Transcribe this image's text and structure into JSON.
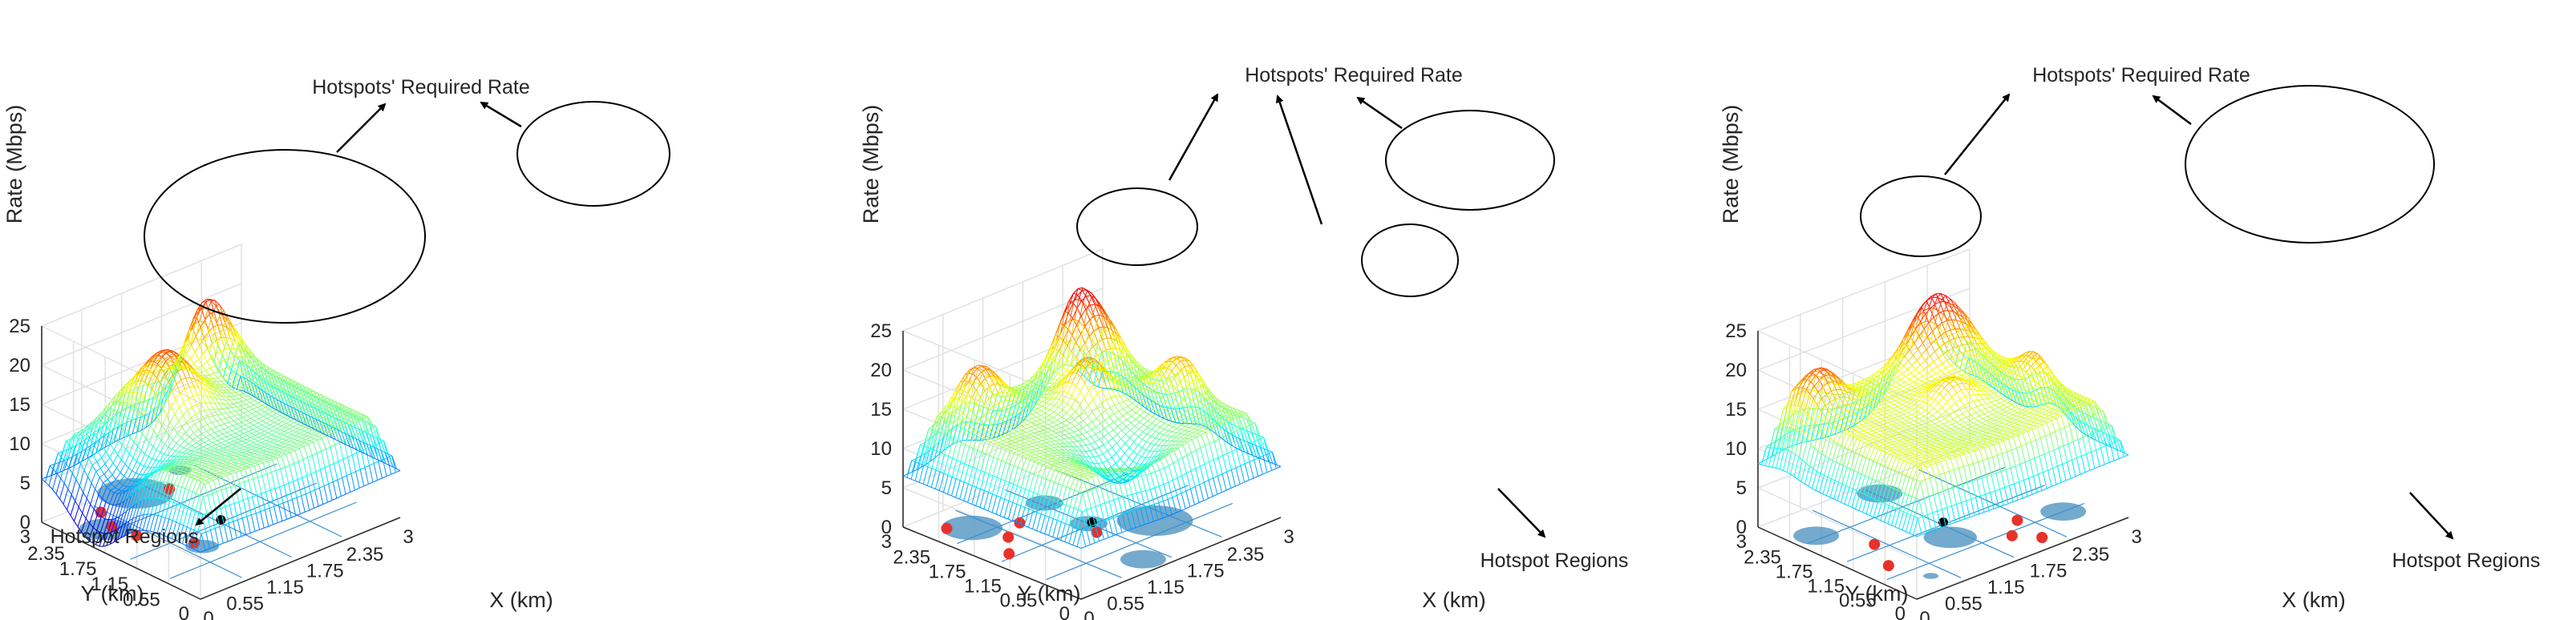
{
  "chart_data": [
    {
      "type": "surface",
      "panel": "left",
      "zlabel": "Rate (Mbps)",
      "xlabel": "X (km)",
      "ylabel": "Y (km)",
      "zlim": [
        0,
        25
      ],
      "zticks": [
        "0",
        "5",
        "10",
        "15",
        "20",
        "25"
      ],
      "xticks": [
        "0",
        "0.55",
        "1.15",
        "1.75",
        "2.35",
        "3"
      ],
      "yticks": [
        "0",
        "0.55",
        "1.15",
        "1.75",
        "2.35",
        "3"
      ],
      "annotations": {
        "required_rate": "Hotspots' Required Rate",
        "regions": "Hotspot Regions"
      },
      "base_level": 13,
      "hotspots": [
        {
          "x": 1.2,
          "y": 2.2,
          "peak": 21,
          "spread": 0.35
        },
        {
          "x": 2.3,
          "y": 2.9,
          "peak": 23,
          "spread": 0.28
        },
        {
          "x": 0.3,
          "y": 2.0,
          "peak": 6,
          "spread": 0.45
        }
      ],
      "base_pixels": [
        {
          "x": 0.4,
          "y": 2.3,
          "r": 0.35
        },
        {
          "x": 1.25,
          "y": 2.8,
          "r": 0.5
        },
        {
          "x": 0.9,
          "y": 1.1,
          "r": 0.22
        },
        {
          "x": 2.0,
          "y": 2.9,
          "r": 0.15
        }
      ],
      "base_stations": [
        {
          "x": 0.55,
          "y": 1.9
        },
        {
          "x": 0.9,
          "y": 1.25
        },
        {
          "x": 1.6,
          "y": 2.6
        },
        {
          "x": 0.65,
          "y": 2.7
        },
        {
          "x": 0.5,
          "y": 2.3
        }
      ]
    },
    {
      "type": "surface",
      "panel": "middle",
      "zlabel": "Rate (Mbps)",
      "xlabel": "X (km)",
      "ylabel": "Y (km)",
      "zlim": [
        0,
        25
      ],
      "zticks": [
        "0",
        "5",
        "10",
        "15",
        "20",
        "25"
      ],
      "xticks": [
        "0",
        "0.55",
        "1.15",
        "1.75",
        "2.35",
        "3"
      ],
      "yticks": [
        "0",
        "0.55",
        "1.15",
        "1.75",
        "2.35",
        "3"
      ],
      "annotations": {
        "required_rate": "Hotspots' Required Rate",
        "regions": "Hotspot Regions"
      },
      "base_level": 13.5,
      "hotspots": [
        {
          "x": 0.8,
          "y": 2.6,
          "peak": 19,
          "spread": 0.25
        },
        {
          "x": 2.4,
          "y": 2.7,
          "peak": 23,
          "spread": 0.3
        },
        {
          "x": 1.8,
          "y": 1.9,
          "peak": 19,
          "spread": 0.22
        },
        {
          "x": 2.6,
          "y": 1.3,
          "peak": 18,
          "spread": 0.25
        },
        {
          "x": 1.3,
          "y": 0.8,
          "peak": 9,
          "spread": 0.3
        }
      ],
      "base_pixels": [
        {
          "x": 0.5,
          "y": 2.4,
          "r": 0.4
        },
        {
          "x": 1.5,
          "y": 2.3,
          "r": 0.25
        },
        {
          "x": 1.45,
          "y": 1.5,
          "r": 0.25
        },
        {
          "x": 2.0,
          "y": 1.0,
          "r": 0.5
        },
        {
          "x": 1.2,
          "y": 0.3,
          "r": 0.3
        }
      ],
      "base_stations": [
        {
          "x": 0.3,
          "y": 2.6
        },
        {
          "x": 0.6,
          "y": 1.9
        },
        {
          "x": 0.95,
          "y": 2.1
        },
        {
          "x": 1.35,
          "y": 1.25
        },
        {
          "x": 0.3,
          "y": 1.55
        }
      ]
    },
    {
      "type": "surface",
      "panel": "right",
      "zlabel": "Rate (Mbps)",
      "xlabel": "X (km)",
      "ylabel": "Y (km)",
      "zlim": [
        0,
        25
      ],
      "zticks": [
        "0",
        "5",
        "10",
        "15",
        "20",
        "25"
      ],
      "xticks": [
        "0",
        "0.55",
        "1.15",
        "1.75",
        "2.35",
        "3"
      ],
      "yticks": [
        "0",
        "0.55",
        "1.15",
        "1.75",
        "2.35",
        "3"
      ],
      "annotations": {
        "required_rate": "Hotspots' Required Rate",
        "regions": "Hotspot Regions"
      },
      "base_level": 15,
      "hotspots": [
        {
          "x": 0.5,
          "y": 2.5,
          "peak": 20,
          "spread": 0.25
        },
        {
          "x": 2.3,
          "y": 2.9,
          "peak": 23.5,
          "spread": 0.35
        },
        {
          "x": 2.8,
          "y": 1.4,
          "peak": 18,
          "spread": 0.25
        },
        {
          "x": 1.7,
          "y": 1.6,
          "peak": 18,
          "spread": 0.22
        }
      ],
      "base_pixels": [
        {
          "x": 0.3,
          "y": 2.3,
          "r": 0.3
        },
        {
          "x": 1.3,
          "y": 1.1,
          "r": 0.35
        },
        {
          "x": 2.6,
          "y": 0.7,
          "r": 0.3
        },
        {
          "x": 0.5,
          "y": 0.4,
          "r": 0.1
        },
        {
          "x": 1.5,
          "y": 2.7,
          "r": 0.3
        }
      ],
      "base_stations": [
        {
          "x": 0.6,
          "y": 1.6
        },
        {
          "x": 1.8,
          "y": 0.6
        },
        {
          "x": 2.0,
          "y": 0.3
        },
        {
          "x": 0.35,
          "y": 1.0
        },
        {
          "x": 2.1,
          "y": 0.9
        }
      ]
    }
  ]
}
